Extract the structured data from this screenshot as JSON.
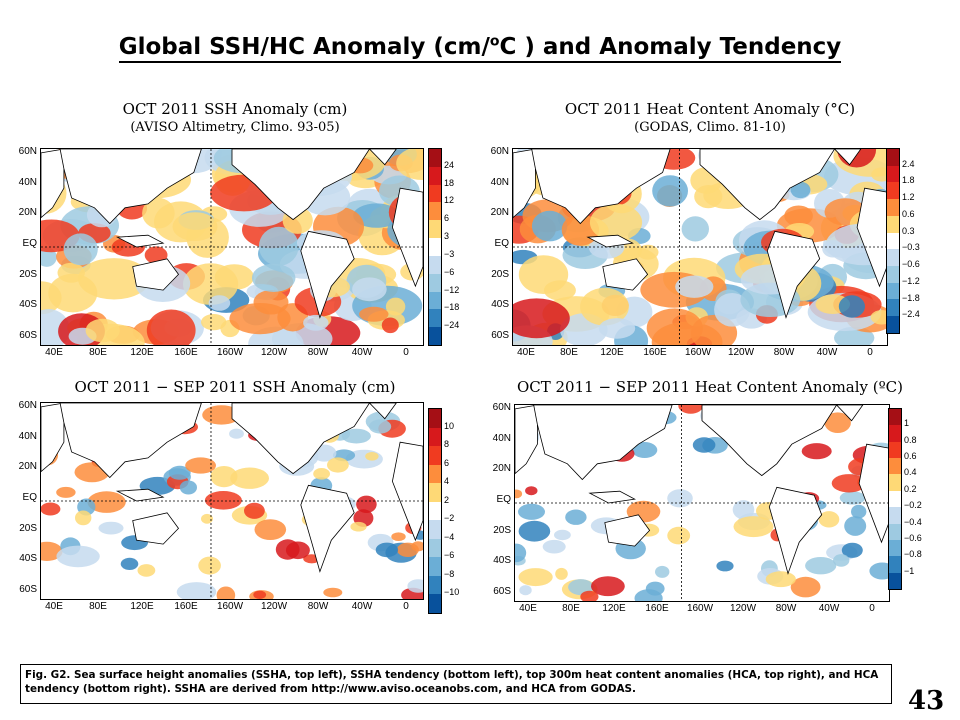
{
  "title": {
    "prefix": "Global SSH/HC Anomaly (cm/",
    "sup": "o",
    "suffix": "C ) and Anomaly Tendency"
  },
  "panels": [
    {
      "id": "ssh-anomaly",
      "title": "OCT 2011 SSH Anomaly (cm)",
      "subtitle": "(AVISO Altimetry, Climo. 93-05)",
      "colorbar_labels": [
        "24",
        "18",
        "12",
        "6",
        "3",
        "−3",
        "−6",
        "−12",
        "−18",
        "−24"
      ]
    },
    {
      "id": "hc-anomaly",
      "title": "OCT 2011 Heat Content Anomaly (°C)",
      "subtitle": "(GODAS, Climo. 81-10)",
      "colorbar_labels": [
        "2.4",
        "1.8",
        "1.2",
        "0.6",
        "0.3",
        "−0.3",
        "−0.6",
        "−1.2",
        "−1.8",
        "−2.4"
      ]
    },
    {
      "id": "ssh-tendency",
      "title": "OCT 2011 − SEP 2011 SSH Anomaly (cm)",
      "subtitle": "",
      "colorbar_labels": [
        "10",
        "8",
        "6",
        "4",
        "2",
        "−2",
        "−4",
        "−6",
        "−8",
        "−10"
      ]
    },
    {
      "id": "hc-tendency",
      "title": "OCT 2011 − SEP 2011 Heat Content Anomaly (ºC)",
      "subtitle": "",
      "colorbar_labels": [
        "1",
        "0.8",
        "0.6",
        "0.4",
        "0.2",
        "−0.2",
        "−0.4",
        "−0.6",
        "−0.8",
        "−1"
      ]
    }
  ],
  "y_ticks": [
    "60N",
    "40N",
    "20N",
    "EQ",
    "20S",
    "40S",
    "60S"
  ],
  "x_ticks": [
    "40E",
    "80E",
    "120E",
    "160E",
    "160W",
    "120W",
    "80W",
    "40W",
    "0"
  ],
  "colorbar_colors": [
    "#a50f15",
    "#d7191c",
    "#f03b20",
    "#fd8d3c",
    "#fed976",
    "#ffffff",
    "#c6dbef",
    "#9ecae1",
    "#6baed6",
    "#3182bd",
    "#08519c"
  ],
  "caption": "Fig. G2. Sea surface height anomalies (SSHA, top left), SSHA tendency (bottom left), top 300m heat content anomalies (HCA, top right), and HCA tendency (bottom right).  SSHA are derived from http://www.aviso.oceanobs.com, and HCA from GODAS.",
  "page_number": "43"
}
